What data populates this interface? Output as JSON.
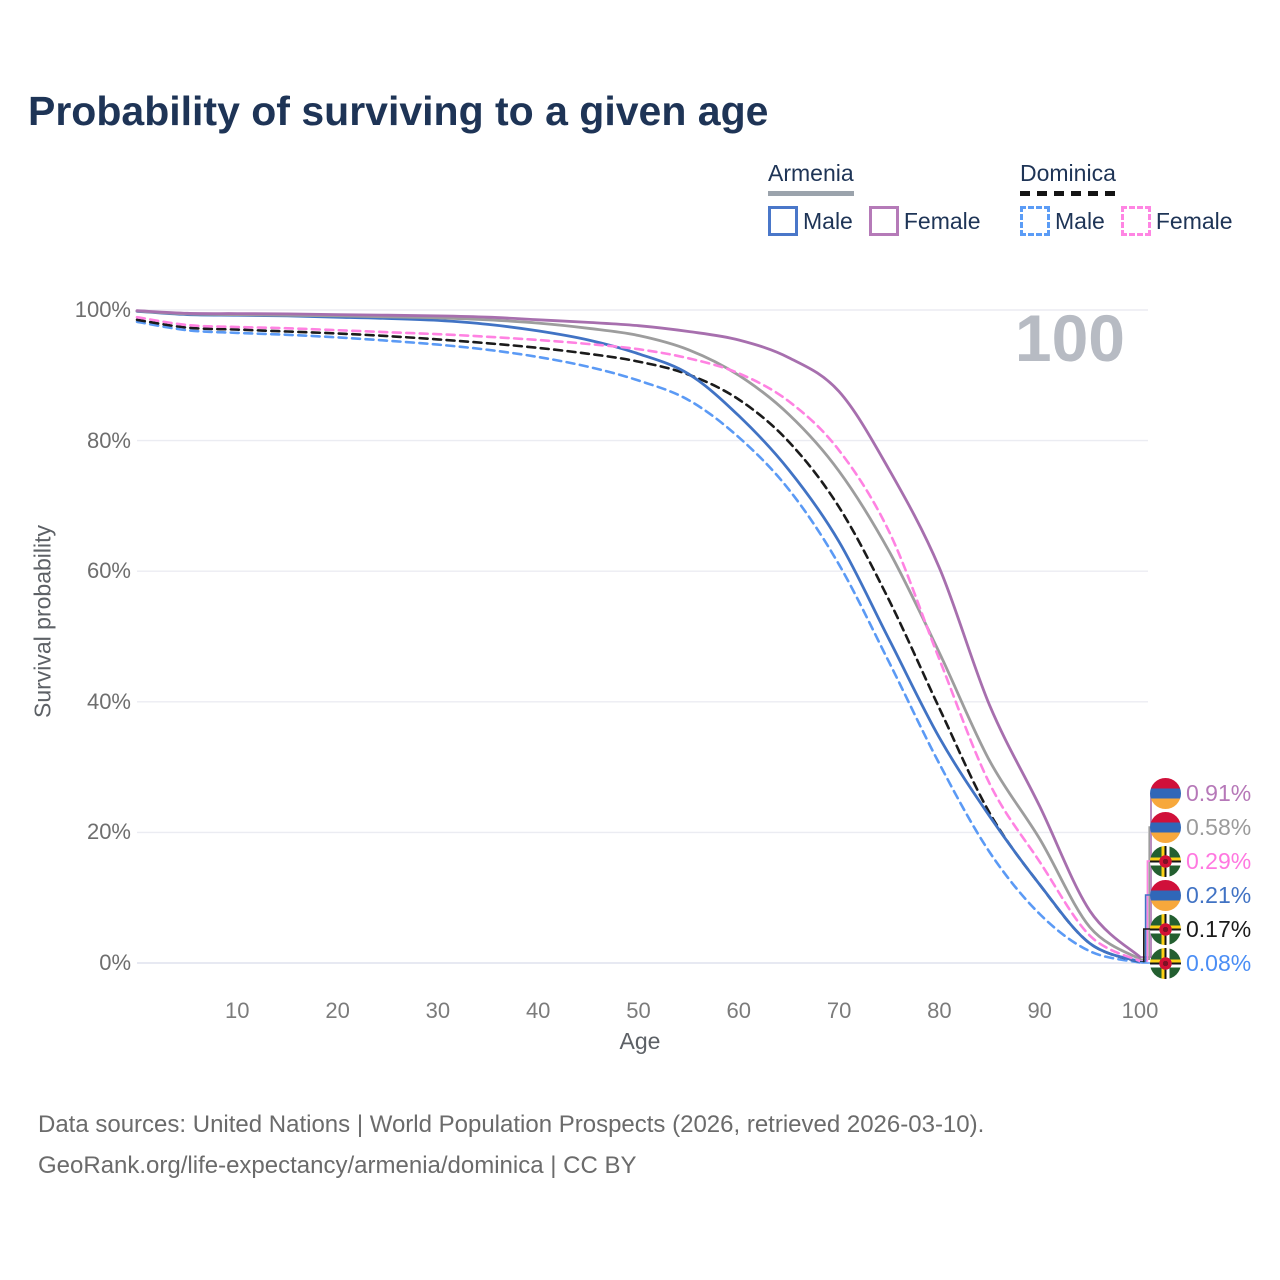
{
  "title": "Probability of surviving to a given age",
  "watermark": "100",
  "legend": {
    "groups": [
      {
        "name": "Armenia",
        "line_style": "solid",
        "underline_color": "#9ba3ac",
        "items": [
          {
            "label": "Male",
            "color": "#4a77c9"
          },
          {
            "label": "Female",
            "color": "#b57ab8"
          }
        ]
      },
      {
        "name": "Dominica",
        "line_style": "dashed",
        "underline_color": "#141414",
        "items": [
          {
            "label": "Male",
            "color": "#5b9cf6"
          },
          {
            "label": "Female",
            "color": "#ff85e3"
          }
        ]
      }
    ]
  },
  "y_axis": {
    "title": "Survival probability",
    "tick_labels": [
      "100%",
      "80%",
      "60%",
      "40%",
      "20%",
      "0%"
    ],
    "tick_values": [
      100,
      80,
      60,
      40,
      20,
      0
    ]
  },
  "x_axis": {
    "title": "Age",
    "tick_values": [
      10,
      20,
      30,
      40,
      50,
      60,
      70,
      80,
      90,
      100
    ]
  },
  "footer": {
    "line1": "Data sources: United Nations | World Population Prospects (2026, retrieved 2026-03-10).",
    "line2": "GeoRank.org/life-expectancy/armenia/dominica | CC BY"
  },
  "chart_data": {
    "type": "line",
    "title": "Probability of surviving to a given age",
    "xlabel": "Age",
    "ylabel": "Survival probability",
    "xlim": [
      0,
      100
    ],
    "ylim": [
      0,
      100
    ],
    "grid": "horizontal",
    "legend_position": "top-right",
    "x": [
      0,
      5,
      10,
      15,
      20,
      25,
      30,
      35,
      40,
      45,
      50,
      55,
      60,
      65,
      70,
      75,
      80,
      85,
      90,
      95,
      100
    ],
    "series": [
      {
        "name": "Armenia Female",
        "country": "Armenia",
        "sex": "Female",
        "color": "#a76fae",
        "dash": false,
        "flag": "armenia",
        "end_label": "0.91%",
        "end_label_color": "#b678b8",
        "end_value": 0.91,
        "values": [
          99.9,
          99.5,
          99.45,
          99.4,
          99.3,
          99.2,
          99.1,
          98.9,
          98.5,
          98.1,
          97.6,
          96.7,
          95.4,
          92.7,
          87.5,
          75.5,
          60.5,
          39.5,
          24,
          8,
          0.91
        ]
      },
      {
        "name": "Armenia",
        "country": "Armenia",
        "sex": "Both",
        "color": "#9d9d9d",
        "dash": false,
        "flag": "armenia",
        "end_label": "0.58%",
        "end_label_color": "#9b9b9b",
        "end_value": 0.58,
        "values": [
          99.85,
          99.4,
          99.3,
          99.2,
          99.1,
          98.95,
          98.8,
          98.5,
          98,
          97.2,
          96.1,
          93.9,
          90,
          84,
          75.3,
          63,
          47.5,
          31,
          19,
          5.5,
          0.58
        ]
      },
      {
        "name": "Dominica Female",
        "country": "Dominica",
        "sex": "Female",
        "color": "#ff82e2",
        "dash": true,
        "flag": "dominica",
        "end_label": "0.29%",
        "end_label_color": "#ff78e0",
        "end_value": 0.29,
        "values": [
          98.9,
          97.7,
          97.4,
          97.2,
          96.9,
          96.6,
          96.3,
          95.9,
          95.4,
          94.8,
          94,
          92.6,
          90.3,
          86,
          78.5,
          66,
          46.5,
          27.5,
          15.5,
          4.2,
          0.29
        ]
      },
      {
        "name": "Armenia Male",
        "country": "Armenia",
        "sex": "Male",
        "color": "#4173c4",
        "dash": false,
        "flag": "armenia",
        "end_label": "0.21%",
        "end_label_color": "#4173c4",
        "end_value": 0.21,
        "values": [
          99.8,
          99.3,
          99.2,
          99.1,
          98.9,
          98.7,
          98.4,
          97.8,
          96.8,
          95.4,
          93.3,
          90.2,
          83.8,
          75.5,
          64.5,
          49.5,
          34.5,
          22.5,
          12,
          3,
          0.21
        ]
      },
      {
        "name": "Dominica",
        "country": "Dominica",
        "sex": "Both",
        "color": "#1b1b1b",
        "dash": true,
        "flag": "dominica",
        "end_label": "0.17%",
        "end_label_color": "#1b1b1b",
        "end_value": 0.17,
        "values": [
          98.5,
          97.3,
          97,
          96.7,
          96.4,
          96,
          95.5,
          94.9,
          94.2,
          93.3,
          92.1,
          90.1,
          86.3,
          79.8,
          69.8,
          55.5,
          39,
          23,
          12,
          3,
          0.17
        ]
      },
      {
        "name": "Dominica Male",
        "country": "Dominica",
        "sex": "Male",
        "color": "#5b9af5",
        "dash": true,
        "flag": "dominica",
        "end_label": "0.08%",
        "end_label_color": "#4b8ef5",
        "end_value": 0.08,
        "values": [
          98.2,
          96.9,
          96.5,
          96.2,
          95.8,
          95.3,
          94.7,
          93.9,
          92.8,
          91.3,
          89.2,
          86.2,
          80.5,
          72.5,
          61,
          46,
          30.5,
          17,
          7.5,
          1.8,
          0.08
        ]
      }
    ]
  }
}
